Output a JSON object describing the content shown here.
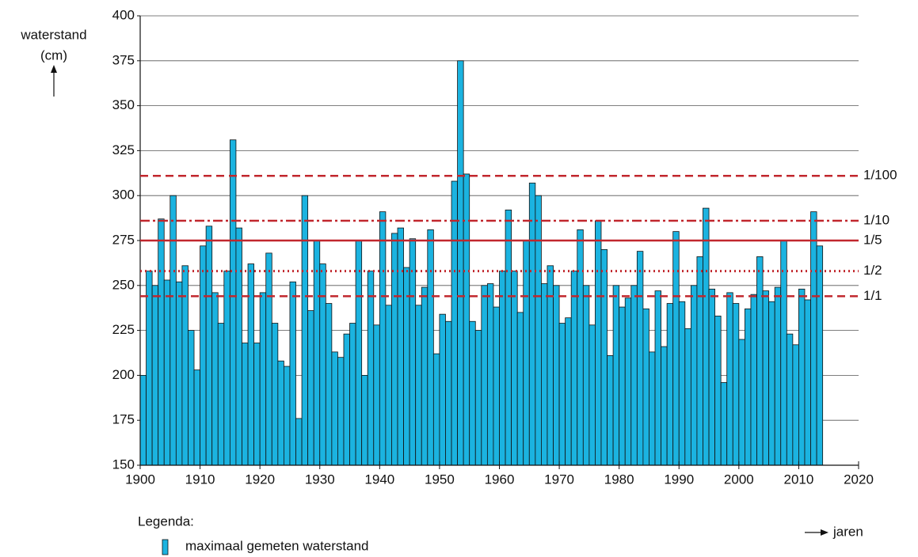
{
  "chart_data": {
    "type": "bar",
    "y_label": [
      "waterstand",
      "(cm)"
    ],
    "x_label": "jaren",
    "legend_title": "Legenda:",
    "x": [
      1900,
      1901,
      1902,
      1903,
      1904,
      1905,
      1906,
      1907,
      1908,
      1909,
      1910,
      1911,
      1912,
      1913,
      1914,
      1915,
      1916,
      1917,
      1918,
      1919,
      1920,
      1921,
      1922,
      1923,
      1924,
      1925,
      1926,
      1927,
      1928,
      1929,
      1930,
      1931,
      1932,
      1933,
      1934,
      1935,
      1936,
      1937,
      1938,
      1939,
      1940,
      1941,
      1942,
      1943,
      1944,
      1945,
      1946,
      1947,
      1948,
      1949,
      1950,
      1951,
      1952,
      1953,
      1954,
      1955,
      1956,
      1957,
      1958,
      1959,
      1960,
      1961,
      1962,
      1963,
      1964,
      1965,
      1966,
      1967,
      1968,
      1969,
      1970,
      1971,
      1972,
      1973,
      1974,
      1975,
      1976,
      1977,
      1978,
      1979,
      1980,
      1981,
      1982,
      1983,
      1984,
      1985,
      1986,
      1987,
      1988,
      1989,
      1990,
      1991,
      1992,
      1993,
      1994,
      1995,
      1996,
      1997,
      1998,
      1999,
      2000,
      2001,
      2002,
      2003,
      2004,
      2005,
      2006,
      2007,
      2008,
      2009,
      2010,
      2011,
      2012,
      2013
    ],
    "series": [
      {
        "name": "maximaal gemeten waterstand",
        "color": "#1bb3e0",
        "values": [
          200,
          258,
          250,
          287,
          253,
          300,
          252,
          261,
          225,
          203,
          272,
          283,
          246,
          229,
          258,
          331,
          282,
          218,
          262,
          218,
          246,
          268,
          229,
          208,
          205,
          252,
          176,
          300,
          236,
          275,
          262,
          240,
          213,
          210,
          223,
          229,
          275,
          200,
          258,
          228,
          291,
          239,
          279,
          282,
          260,
          276,
          239,
          249,
          281,
          212,
          234,
          230,
          308,
          375,
          312,
          230,
          225,
          250,
          251,
          238,
          258,
          292,
          258,
          235,
          275,
          307,
          300,
          251,
          261,
          250,
          229,
          232,
          258,
          281,
          250,
          228,
          286,
          270,
          211,
          250,
          238,
          243,
          250,
          269,
          237,
          213,
          247,
          216,
          240,
          280,
          241,
          226,
          250,
          266,
          293,
          248,
          233,
          196,
          246,
          240,
          220,
          237,
          245,
          266,
          247,
          241,
          249,
          275,
          223,
          217,
          248,
          242,
          291,
          272
        ]
      }
    ],
    "reference_lines": [
      {
        "label": "1/100",
        "value": 311,
        "style": "dashed"
      },
      {
        "label": "1/10",
        "value": 286,
        "style": "dashdot"
      },
      {
        "label": "1/5",
        "value": 275,
        "style": "solid"
      },
      {
        "label": "1/2",
        "value": 258,
        "style": "dotted"
      },
      {
        "label": "1/1",
        "value": 244,
        "style": "dashed"
      }
    ],
    "reference_color": "#c1272d",
    "xlim": [
      1900,
      2020
    ],
    "xticks": [
      1900,
      1910,
      1920,
      1930,
      1940,
      1950,
      1960,
      1970,
      1980,
      1990,
      2000,
      2010,
      2020
    ],
    "ylim": [
      150,
      400
    ],
    "yticks": [
      150,
      175,
      200,
      225,
      250,
      275,
      300,
      325,
      350,
      375,
      400
    ],
    "grid": true
  }
}
